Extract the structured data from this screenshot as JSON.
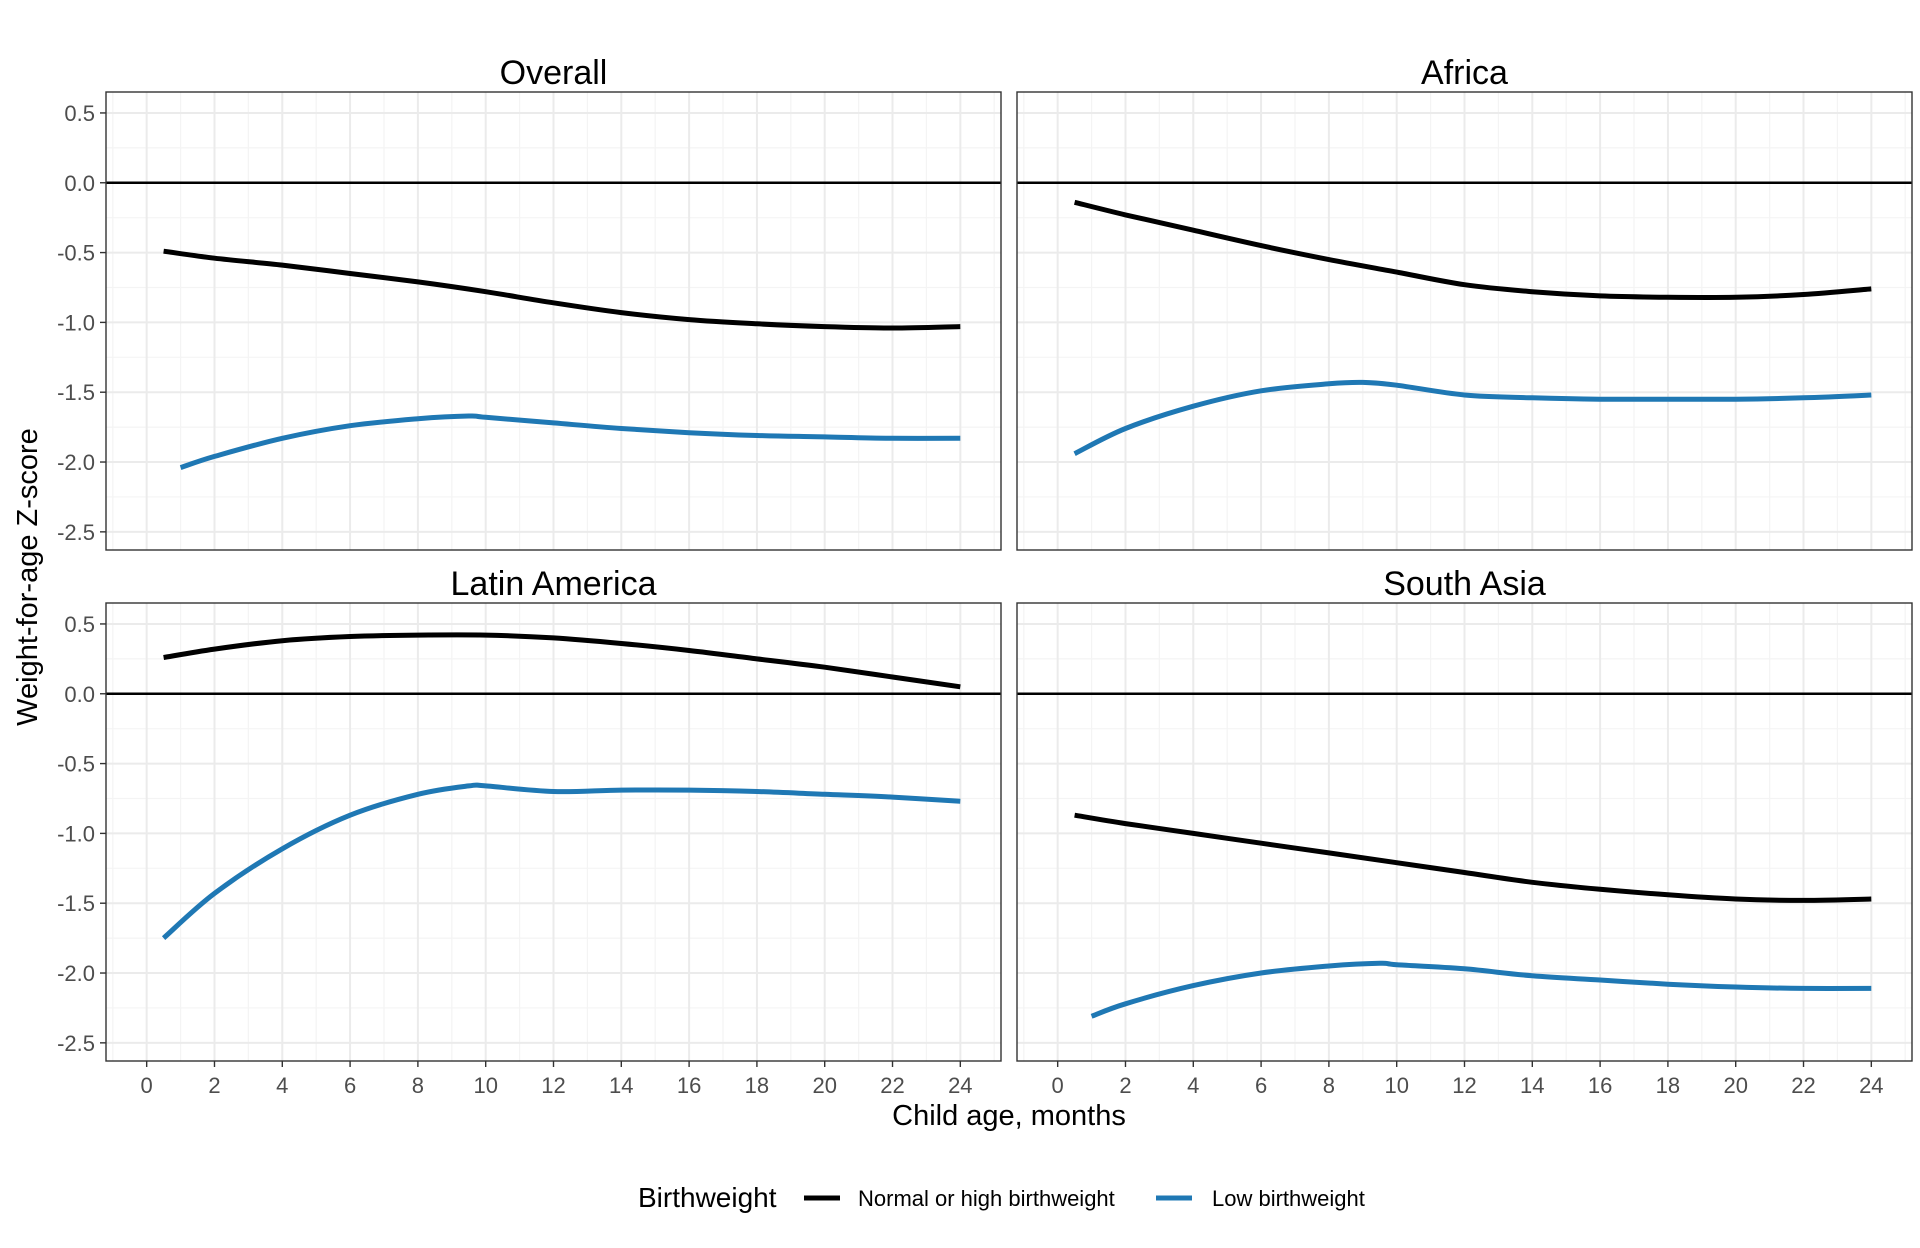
{
  "chart_data": {
    "type": "line",
    "xlabel": "Child age, months",
    "ylabel": "Weight-for-age Z-score",
    "xlim": [
      -1.2,
      25.2
    ],
    "ylim": [
      -2.63,
      0.65
    ],
    "x_ticks": [
      0,
      2,
      4,
      6,
      8,
      10,
      12,
      14,
      16,
      18,
      20,
      22,
      24
    ],
    "y_ticks": [
      0.5,
      0.0,
      -0.5,
      -1.0,
      -1.5,
      -2.0,
      -2.5
    ],
    "x_tick_labels": [
      "0",
      "2",
      "4",
      "6",
      "8",
      "10",
      "12",
      "14",
      "16",
      "18",
      "20",
      "22",
      "24"
    ],
    "y_tick_labels": [
      "0.5",
      "0.0",
      "-0.5",
      "-1.0",
      "-1.5",
      "-2.0",
      "-2.5"
    ],
    "reference_line_y": 0,
    "grid": true,
    "legend": {
      "title": "Birthweight",
      "position": "bottom",
      "entries": [
        "Normal or high birthweight",
        "Low birthweight"
      ]
    },
    "colors": {
      "Normal or high birthweight": "#000000",
      "Low birthweight": "#1f78b4"
    },
    "panels": [
      {
        "title": "Overall",
        "series": [
          {
            "name": "Normal or high birthweight",
            "x": [
              0.5,
              2,
              4,
              6,
              8,
              10,
              12,
              14,
              16,
              18,
              20,
              22,
              24
            ],
            "y": [
              -0.49,
              -0.54,
              -0.59,
              -0.65,
              -0.71,
              -0.78,
              -0.86,
              -0.93,
              -0.98,
              -1.01,
              -1.03,
              -1.04,
              -1.03
            ]
          },
          {
            "name": "Low birthweight",
            "x": [
              1,
              2,
              4,
              6,
              8,
              9.5,
              10,
              12,
              14,
              16,
              18,
              20,
              22,
              24
            ],
            "y": [
              -2.04,
              -1.96,
              -1.83,
              -1.74,
              -1.69,
              -1.67,
              -1.68,
              -1.72,
              -1.76,
              -1.79,
              -1.81,
              -1.82,
              -1.83,
              -1.83
            ]
          }
        ]
      },
      {
        "title": "Africa",
        "series": [
          {
            "name": "Normal or high birthweight",
            "x": [
              0.5,
              2,
              4,
              6,
              8,
              10,
              12,
              14,
              16,
              18,
              20,
              22,
              24
            ],
            "y": [
              -0.14,
              -0.23,
              -0.34,
              -0.45,
              -0.55,
              -0.64,
              -0.73,
              -0.78,
              -0.81,
              -0.82,
              -0.82,
              -0.8,
              -0.76
            ]
          },
          {
            "name": "Low birthweight",
            "x": [
              0.5,
              2,
              4,
              6,
              8,
              9,
              10,
              12,
              14,
              16,
              18,
              20,
              22,
              24
            ],
            "y": [
              -1.94,
              -1.76,
              -1.6,
              -1.49,
              -1.44,
              -1.43,
              -1.45,
              -1.52,
              -1.54,
              -1.55,
              -1.55,
              -1.55,
              -1.54,
              -1.52
            ]
          }
        ]
      },
      {
        "title": "Latin America",
        "series": [
          {
            "name": "Normal or high birthweight",
            "x": [
              0.5,
              2,
              4,
              6,
              8,
              10,
              12,
              14,
              16,
              18,
              20,
              22,
              24
            ],
            "y": [
              0.26,
              0.32,
              0.38,
              0.41,
              0.42,
              0.42,
              0.4,
              0.36,
              0.31,
              0.25,
              0.19,
              0.12,
              0.05
            ]
          },
          {
            "name": "Low birthweight",
            "x": [
              0.5,
              2,
              4,
              6,
              8,
              9.5,
              10,
              12,
              14,
              16,
              18,
              20,
              22,
              24
            ],
            "y": [
              -1.75,
              -1.43,
              -1.11,
              -0.87,
              -0.72,
              -0.66,
              -0.66,
              -0.7,
              -0.69,
              -0.69,
              -0.7,
              -0.72,
              -0.74,
              -0.77
            ]
          }
        ]
      },
      {
        "title": "South Asia",
        "series": [
          {
            "name": "Normal or high birthweight",
            "x": [
              0.5,
              2,
              4,
              6,
              8,
              10,
              12,
              14,
              16,
              18,
              20,
              22,
              24
            ],
            "y": [
              -0.87,
              -0.93,
              -1.0,
              -1.07,
              -1.14,
              -1.21,
              -1.28,
              -1.35,
              -1.4,
              -1.44,
              -1.47,
              -1.48,
              -1.47
            ]
          },
          {
            "name": "Low birthweight",
            "x": [
              1,
              2,
              4,
              6,
              8,
              9.5,
              10,
              12,
              14,
              16,
              18,
              20,
              22,
              24
            ],
            "y": [
              -2.31,
              -2.22,
              -2.09,
              -2.0,
              -1.95,
              -1.93,
              -1.94,
              -1.97,
              -2.02,
              -2.05,
              -2.08,
              -2.1,
              -2.11,
              -2.11
            ]
          }
        ]
      }
    ]
  }
}
